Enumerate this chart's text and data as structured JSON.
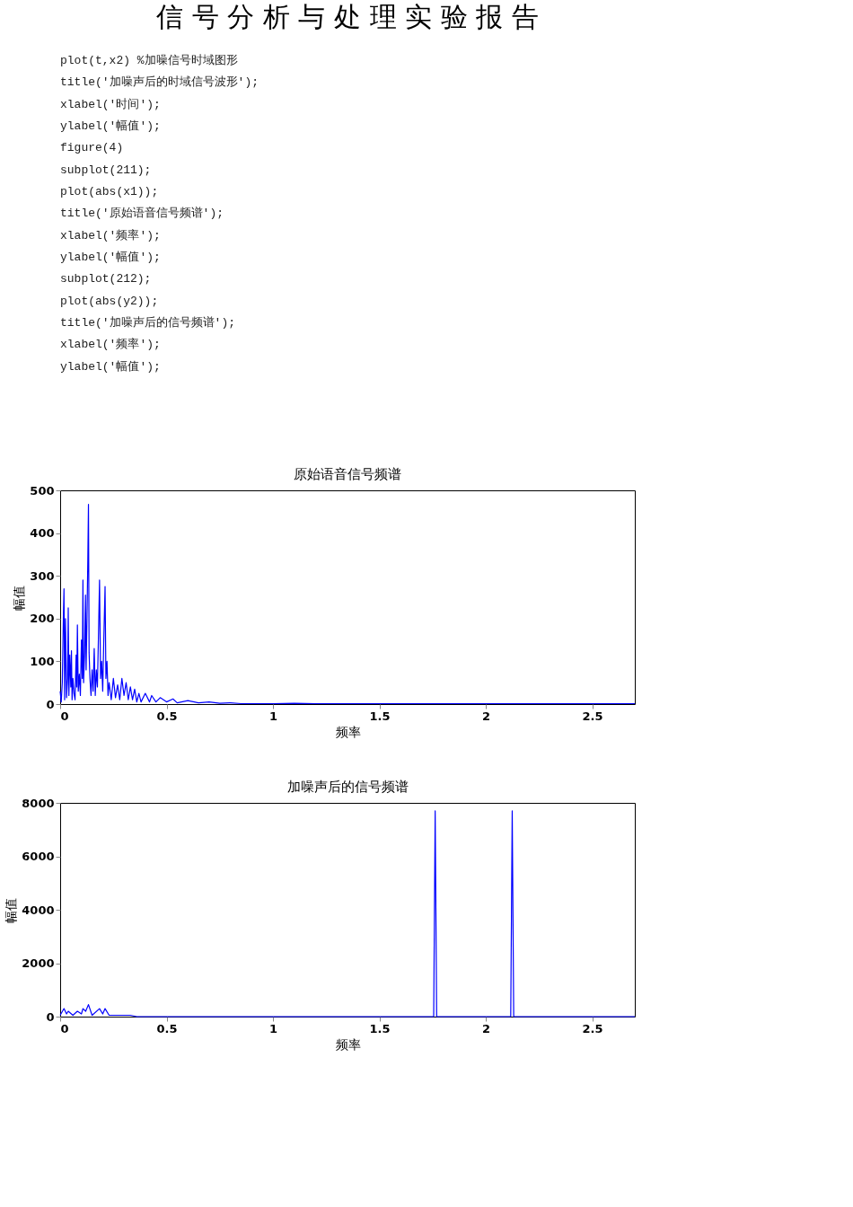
{
  "chart_data": [
    {
      "type": "other",
      "title": "信 号 分 析 与 处 理 实 验 报 告",
      "annotations": [
        "plot(t,x2)  %加噪信号时域图形",
        "title('加噪声后的时域信号波形');",
        "xlabel('时间');",
        "ylabel('幅值');",
        "figure(4)",
        "subplot(211);",
        "plot(abs(x1));",
        "title('原始语音信号频谱');",
        "xlabel('频率');",
        "ylabel('幅值');",
        "subplot(212);",
        "plot(abs(y2));",
        "title('加噪声后的信号频谱');",
        "xlabel('频率');",
        "ylabel('幅值');"
      ]
    },
    {
      "type": "line",
      "title": "原始语音信号频谱",
      "xlabel": "频率",
      "ylabel": "幅值",
      "xlim": [
        0,
        2.7
      ],
      "ylim": [
        0,
        500
      ],
      "xticks": [
        0,
        0.5,
        1,
        1.5,
        2,
        2.5
      ],
      "yticks": [
        0,
        100,
        200,
        300,
        400,
        500
      ],
      "grid": false,
      "x": [
        0,
        0.005,
        0.01,
        0.015,
        0.018,
        0.021,
        0.025,
        0.03,
        0.035,
        0.038,
        0.041,
        0.045,
        0.05,
        0.053,
        0.056,
        0.06,
        0.065,
        0.07,
        0.075,
        0.078,
        0.081,
        0.085,
        0.09,
        0.095,
        0.1,
        0.104,
        0.107,
        0.11,
        0.115,
        0.119,
        0.122,
        0.126,
        0.13,
        0.133,
        0.136,
        0.14,
        0.145,
        0.15,
        0.155,
        0.16,
        0.165,
        0.17,
        0.175,
        0.18,
        0.185,
        0.19,
        0.195,
        0.2,
        0.205,
        0.211,
        0.215,
        0.22,
        0.225,
        0.23,
        0.24,
        0.25,
        0.26,
        0.27,
        0.28,
        0.29,
        0.3,
        0.31,
        0.32,
        0.33,
        0.34,
        0.35,
        0.36,
        0.37,
        0.38,
        0.4,
        0.42,
        0.43,
        0.45,
        0.47,
        0.5,
        0.53,
        0.55,
        0.6,
        0.65,
        0.7,
        0.75,
        0.8,
        0.85,
        1.0,
        1.1,
        1.2,
        1.5,
        2.0,
        2.5,
        2.7
      ],
      "series": [
        {
          "color": "#0000ff",
          "values": [
            30,
            5,
            50,
            200,
            270,
            10,
            200,
            15,
            60,
            225,
            20,
            115,
            40,
            125,
            10,
            60,
            25,
            10,
            115,
            40,
            185,
            30,
            70,
            20,
            150,
            60,
            290,
            50,
            120,
            255,
            80,
            200,
            337,
            467,
            120,
            60,
            20,
            80,
            30,
            130,
            20,
            80,
            40,
            160,
            290,
            60,
            100,
            30,
            150,
            275,
            60,
            100,
            20,
            50,
            10,
            60,
            15,
            45,
            10,
            60,
            20,
            50,
            10,
            40,
            10,
            35,
            5,
            25,
            5,
            25,
            5,
            20,
            5,
            15,
            5,
            12,
            3,
            8,
            3,
            5,
            2,
            3,
            1,
            1,
            2,
            1,
            1,
            1,
            1,
            1
          ]
        }
      ]
    },
    {
      "type": "line",
      "title": "加噪声后的信号频谱",
      "xlabel": "频率",
      "ylabel": "幅值",
      "xlim": [
        0,
        2.7
      ],
      "ylim": [
        0,
        8000
      ],
      "xticks": [
        0,
        0.5,
        1,
        1.5,
        2,
        2.5
      ],
      "yticks": [
        0,
        2000,
        4000,
        6000,
        8000
      ],
      "grid": false,
      "x": [
        0,
        0.018,
        0.03,
        0.038,
        0.06,
        0.081,
        0.1,
        0.107,
        0.12,
        0.133,
        0.15,
        0.185,
        0.2,
        0.211,
        0.23,
        0.3,
        0.33,
        0.36,
        0.5,
        1.0,
        1.5,
        1.755,
        1.762,
        1.769,
        2.0,
        2.117,
        2.124,
        2.131,
        2.5,
        2.7
      ],
      "series": [
        {
          "color": "#0000ff",
          "values": [
            50,
            300,
            100,
            200,
            50,
            200,
            100,
            300,
            200,
            450,
            50,
            300,
            100,
            300,
            50,
            50,
            50,
            0,
            0,
            0,
            0,
            0,
            7700,
            0,
            0,
            0,
            7700,
            0,
            0,
            0
          ]
        }
      ]
    }
  ]
}
